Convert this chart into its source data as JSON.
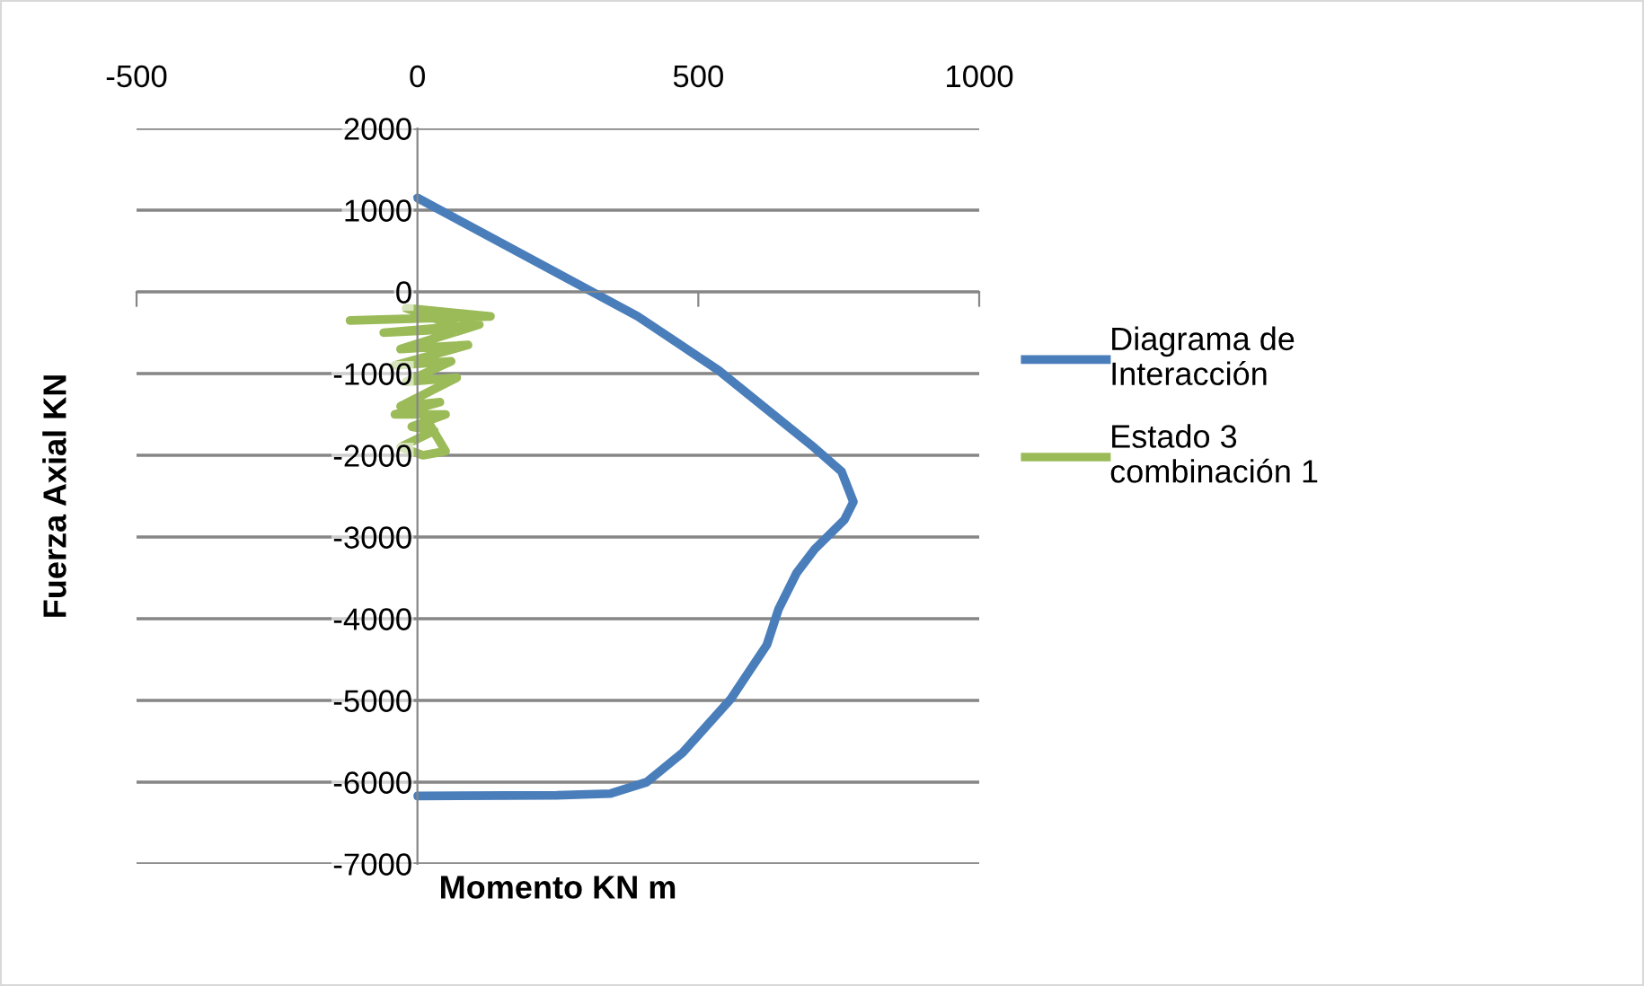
{
  "chart_data": {
    "type": "line",
    "xlabel": "Momento KN m",
    "ylabel": "Fuerza Axial KN",
    "xlim": [
      -500,
      1000
    ],
    "xticks": [
      -500,
      0,
      500,
      1000
    ],
    "ylim": [
      -7000,
      2000
    ],
    "yticks": [
      -7000,
      -6000,
      -5000,
      -4000,
      -3000,
      -2000,
      -1000,
      0,
      1000,
      2000
    ],
    "grid": "y",
    "legend": "right",
    "marker": "none",
    "line_style": "solid",
    "series": [
      {
        "name": "Diagrama de\nInteracción",
        "color": "#4a7ebb",
        "x": [
          0,
          392,
          536,
          707,
          755,
          776,
          760,
          707,
          675,
          643,
          622,
          558,
          472,
          408,
          344,
          248,
          0
        ],
        "values": [
          1150,
          -300,
          -960,
          -1910,
          -2200,
          -2570,
          -2790,
          -3150,
          -3440,
          -3880,
          -4320,
          -4980,
          -5640,
          -6000,
          -6140,
          -6160,
          -6170
        ]
      },
      {
        "name": "Estado 3\ncombinación 1",
        "color": "#9bbb59",
        "x": [
          -120,
          130,
          -20,
          80,
          -60,
          110,
          -30,
          90,
          -40,
          60,
          -20,
          70,
          -30,
          40,
          -40,
          50,
          -10,
          30,
          -30,
          10,
          50,
          20
        ],
        "values": [
          -350,
          -300,
          -200,
          -450,
          -500,
          -400,
          -700,
          -650,
          -900,
          -850,
          -1100,
          -1050,
          -1400,
          -1350,
          -1500,
          -1500,
          -1650,
          -1700,
          -1900,
          -2000,
          -1950,
          -1600
        ]
      }
    ]
  }
}
